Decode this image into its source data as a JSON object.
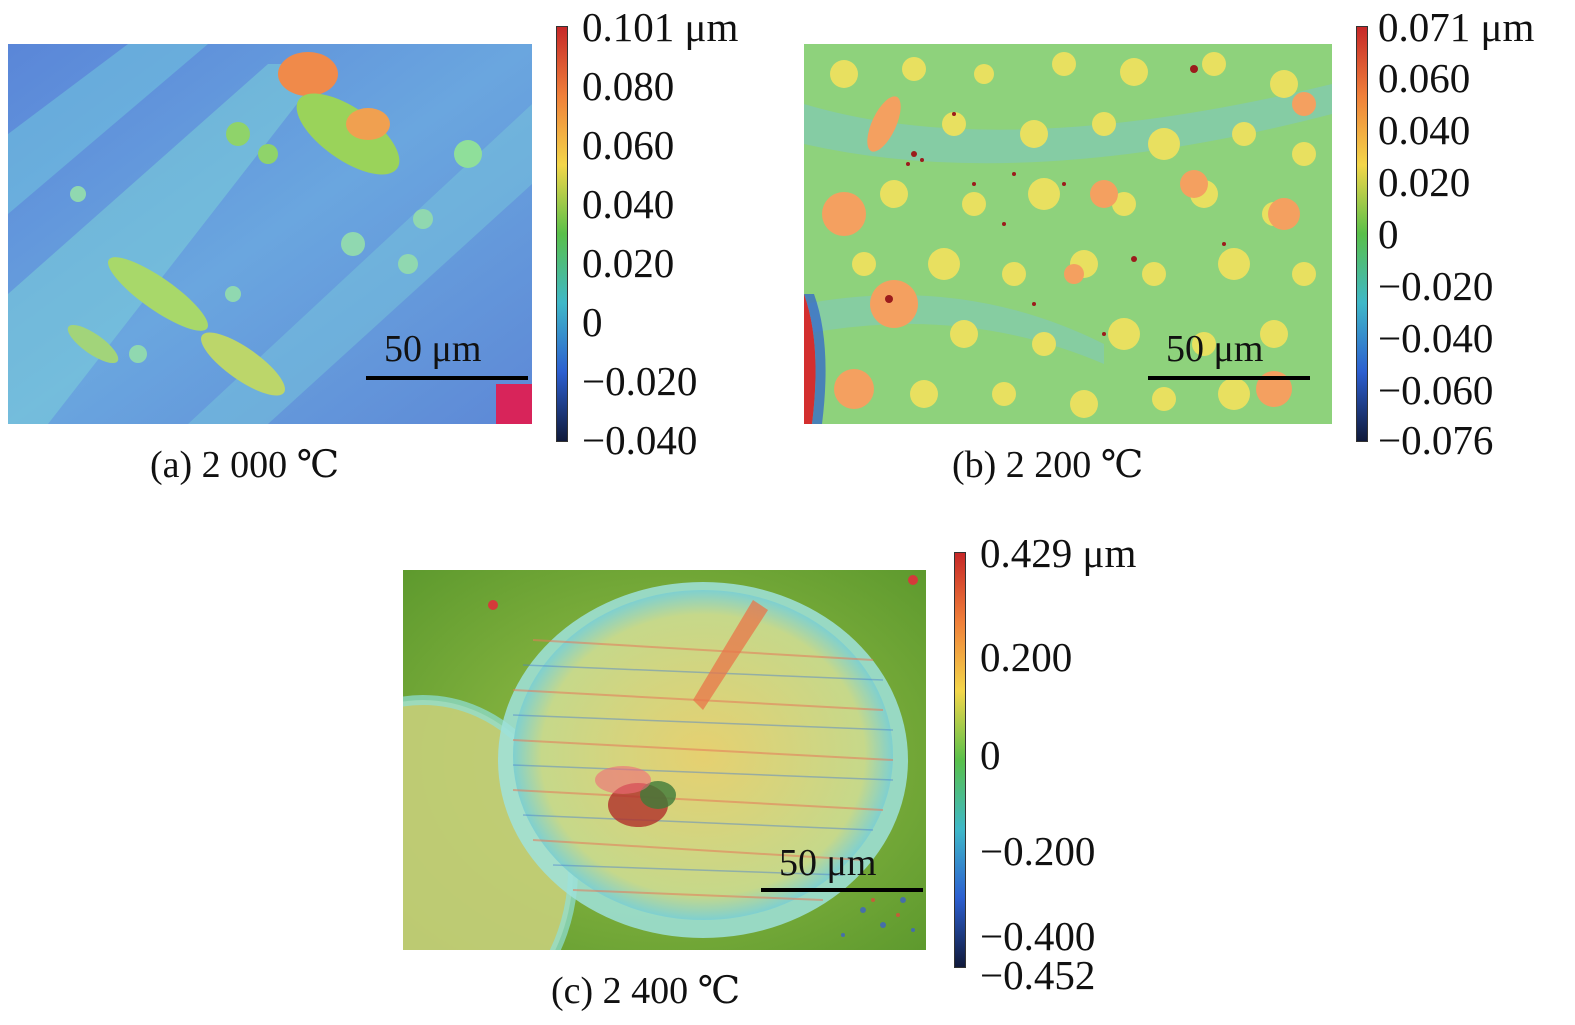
{
  "panels": [
    {
      "caption": "(a) 2 000 ℃",
      "scale_bar": "50 μm",
      "colorbar_ticks": [
        "0.101 μm",
        "0.080",
        "0.060",
        "0.040",
        "0.020",
        "0",
        "−0.020",
        "−0.040"
      ],
      "base_color": "#5b8fd6"
    },
    {
      "caption": "(b) 2 200 ℃",
      "scale_bar": "50 μm",
      "colorbar_ticks": [
        "0.071 μm",
        "0.060",
        "0.040",
        "0.020",
        "0",
        "−0.020",
        "−0.040",
        "−0.060",
        "−0.076"
      ],
      "base_color": "#8fd07a"
    },
    {
      "caption": "(c) 2 400 ℃",
      "scale_bar": "50 μm",
      "colorbar_ticks": [
        "0.429 μm",
        "0.200",
        "0",
        "−0.200",
        "−0.400",
        "−0.452"
      ],
      "base_color": "#7fb24a"
    }
  ],
  "colormap": [
    "#c62828",
    "#f0803a",
    "#f3d64a",
    "#59c04a",
    "#3fb8c8",
    "#2c5fd0",
    "#101a3a"
  ]
}
